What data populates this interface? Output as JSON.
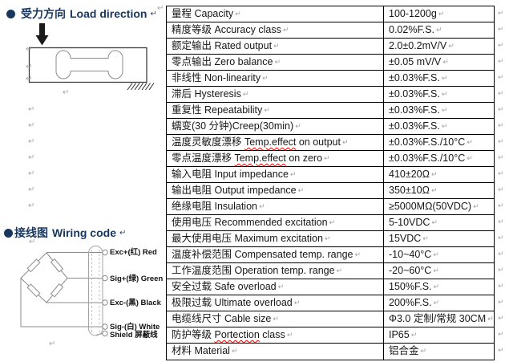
{
  "sections": {
    "load_direction": {
      "title_zh": "受力方向",
      "title_en": "Load direction"
    },
    "wiring": {
      "title_zh": "接线图",
      "title_en": "Wiring code",
      "terminals": [
        {
          "label": "Exc+(红) Red"
        },
        {
          "label": "Sig+(绿) Green"
        },
        {
          "label": "Exc-(黑) Black"
        },
        {
          "label": "Sig-(白) White"
        },
        {
          "label": "Shield 屏蔽线"
        }
      ]
    }
  },
  "spec_table": {
    "rows": [
      {
        "label": "量程 Capacity",
        "value": "100-1200g"
      },
      {
        "label": "精度等级 Accuracy class",
        "value": "0.02%F.S."
      },
      {
        "label": "额定输出 Rated output",
        "value": "2.0±0.2mV/V"
      },
      {
        "label": "零点输出 Zero balance",
        "value": "±0.05 mV/V"
      },
      {
        "label": "非线性 Non-linearity",
        "value": "±0.03%F.S."
      },
      {
        "label": "滞后 Hysteresis",
        "value": "±0.03%F.S."
      },
      {
        "label": "重复性 Repeatability",
        "value": "±0.03%F.S."
      },
      {
        "label": "蠕变(30 分钟)Creep(30min)",
        "value": "±0.03%F.S."
      },
      {
        "label": "温度灵敏度漂移 Temp.effect on output",
        "value": "±0.03%F.S./10°C",
        "typo": "Temp.effect"
      },
      {
        "label": "零点温度漂移 Temp.effect on zero",
        "value": "±0.03%F.S./10°C",
        "typo": "Temp.effect"
      },
      {
        "label": "输入电阻 Input impedance",
        "value": "410±20Ω"
      },
      {
        "label": "输出电阻 Output impedance",
        "value": "350±10Ω"
      },
      {
        "label": "绝缘电阻 Insulation",
        "value": "≥5000MΩ(50VDC)"
      },
      {
        "label": "使用电压 Recommended excitation",
        "value": "5-10VDC"
      },
      {
        "label": "最大使用电压 Maximum excitation",
        "value": "15VDC"
      },
      {
        "label": "温度补偿范围 Compensated temp. range",
        "value": "-10~40°C"
      },
      {
        "label": "工作温度范围 Operation temp. range",
        "value": "-20~60°C"
      },
      {
        "label": "安全过载 Safe overload",
        "value": "150%F.S."
      },
      {
        "label": "极限过载 Ultimate overload",
        "value": "200%F.S."
      },
      {
        "label": "电缆线尺寸 Cable size",
        "value": "Φ3.0 定制/常规 30CM"
      },
      {
        "label": "防护等级 Portection class",
        "value": "IP65",
        "typo": "Portection"
      },
      {
        "label": "材料  Material",
        "value": "铝合金"
      }
    ]
  },
  "colors": {
    "accent": "#17375e",
    "typo_underline": "#ff0000"
  },
  "marks": {
    "return_symbol": "↵"
  }
}
